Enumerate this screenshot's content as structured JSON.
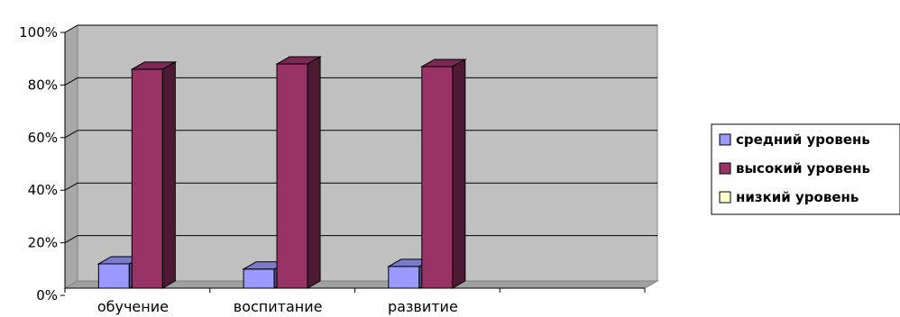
{
  "chart_data": {
    "type": "bar",
    "categories": [
      "обучение",
      "воспитание",
      "развитие"
    ],
    "series": [
      {
        "name": "средний уровень",
        "values": [
          12,
          10,
          11
        ]
      },
      {
        "name": "высокий уровень",
        "values": [
          86,
          88,
          87
        ]
      },
      {
        "name": "низкий уровень",
        "values": [
          0,
          0,
          0
        ]
      }
    ],
    "ylim": [
      0,
      100
    ],
    "ytick_labels": [
      "0%",
      "20%",
      "40%",
      "60%",
      "80%",
      "100%"
    ],
    "title": "",
    "xlabel": "",
    "ylabel": "",
    "grid": true,
    "legend_position": "right",
    "colors": {
      "series": [
        "#9999ff",
        "#993366",
        "#ffffcc"
      ],
      "plot_background": "#c0c0c0"
    }
  }
}
